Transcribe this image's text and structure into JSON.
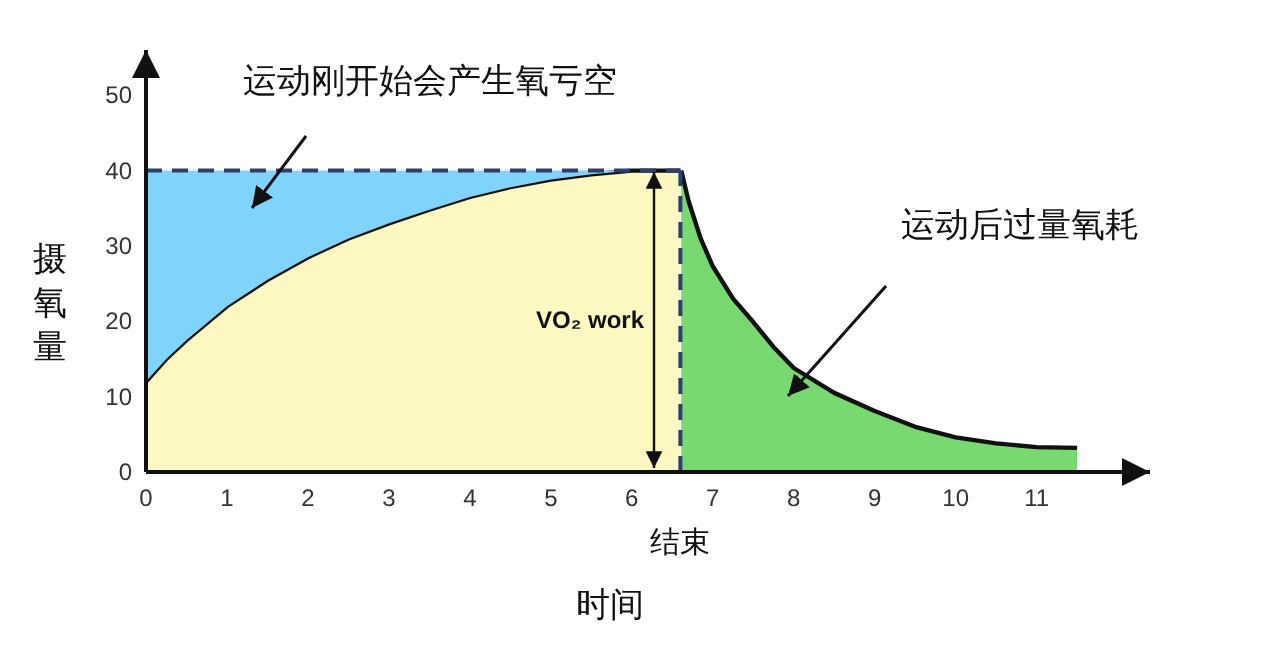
{
  "chart_data": {
    "type": "area",
    "stacked": true,
    "xlabel": "时间",
    "ylabel": "摄氧量",
    "xlim": [
      0,
      12.4
    ],
    "ylim": [
      0,
      56
    ],
    "xticks": [
      0,
      1,
      2,
      3,
      4,
      5,
      6,
      7,
      8,
      9,
      10,
      11
    ],
    "yticks": [
      0,
      10,
      20,
      30,
      40,
      50
    ],
    "x": [
      0,
      0.25,
      0.5,
      1,
      1.5,
      2,
      2.5,
      3,
      3.5,
      4,
      4.5,
      5,
      5.5,
      6,
      6.6,
      6.61,
      6.7,
      6.85,
      7,
      7.25,
      7.5,
      7.75,
      8,
      8.5,
      9,
      9.5,
      10,
      10.5,
      11,
      11.5
    ],
    "series": [
      {
        "color": "#fdf8c2",
        "line_style": "solid",
        "values": [
          12,
          15,
          17.5,
          22,
          25.5,
          28.5,
          31,
          33,
          34.8,
          36.5,
          37.8,
          38.8,
          39.5,
          40,
          40,
          null,
          null,
          null,
          null,
          null,
          null,
          null,
          null,
          null,
          null,
          null,
          null,
          null,
          null,
          null
        ]
      },
      {
        "color": "#80d3fa",
        "line_style": "dashed",
        "values": [
          28,
          25,
          22.5,
          18,
          14.5,
          11.5,
          9,
          7,
          5.2,
          3.5,
          2.2,
          1.2,
          0.5,
          0,
          0,
          null,
          null,
          null,
          null,
          null,
          null,
          null,
          null,
          null,
          null,
          null,
          null,
          null,
          null,
          null
        ]
      },
      {
        "color": "#77d96f",
        "line_style": "solid",
        "values": [
          null,
          null,
          null,
          null,
          null,
          null,
          null,
          null,
          null,
          null,
          null,
          null,
          null,
          null,
          null,
          40,
          36,
          31,
          27.3,
          23,
          19.9,
          16.6,
          13.8,
          10.5,
          8.1,
          6,
          4.6,
          3.8,
          3.3,
          3.2
        ]
      }
    ],
    "ref_lines": [
      {
        "axis": "x",
        "value": 6.6,
        "label": "结束",
        "line_style": "dashed",
        "color": "#2e3f6e"
      }
    ],
    "annotations": [
      "运动刚开始会产生氧亏空",
      "VO₂ work",
      "运动后过量氧耗"
    ]
  }
}
